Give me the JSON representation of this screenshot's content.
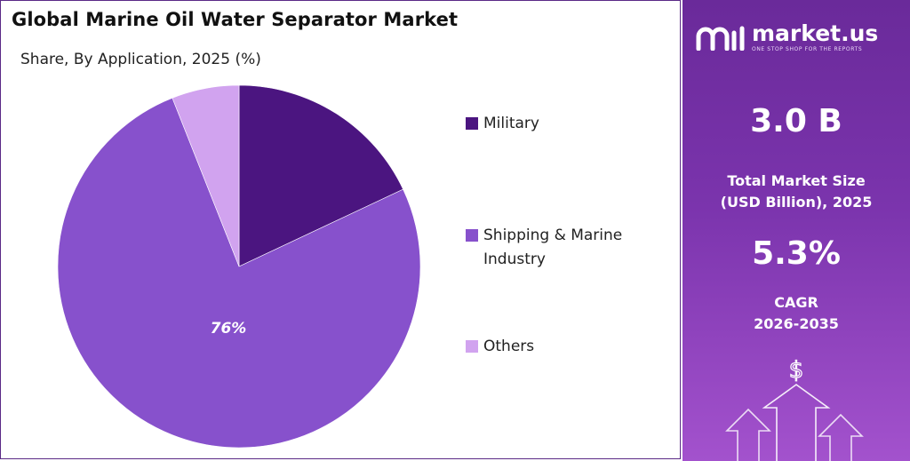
{
  "chart_data": {
    "type": "pie",
    "title": "Global Marine Oil Water Separator Market",
    "subtitle": "Share, By Application, 2025 (%)",
    "slices": [
      {
        "label": "Military",
        "value": 18,
        "color": "#4b1580"
      },
      {
        "label": "Shipping & Marine Industry",
        "value": 76,
        "color": "#8751cc"
      },
      {
        "label": "Others",
        "value": 6,
        "color": "#d1a3ef"
      }
    ],
    "data_labels": [
      "",
      "76%",
      ""
    ],
    "legend_position": "right"
  },
  "legend": {
    "items": [
      "Military",
      "Shipping & Marine Industry",
      "Others"
    ]
  },
  "panel": {
    "brand_name": "market.us",
    "brand_tagline": "ONE STOP SHOP FOR THE REPORTS",
    "market_size_value": "3.0 B",
    "market_size_caption_line1": "Total Market Size",
    "market_size_caption_line2": "(USD Billion), 2025",
    "cagr_value": "5.3%",
    "cagr_caption_line1": "CAGR",
    "cagr_caption_line2": "2026-2035",
    "dollar_symbol": "$",
    "icons": [
      "market-us-logo-icon",
      "dollar-icon",
      "growth-arrows-icon"
    ]
  }
}
